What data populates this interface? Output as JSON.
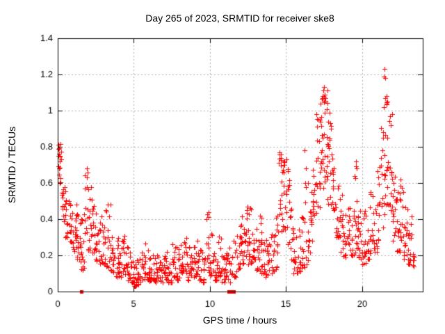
{
  "window": {
    "background": "#ffffff"
  },
  "chart_data": {
    "type": "scatter",
    "title": "Day 265 of 2023, SRMTID for receiver ske8",
    "xlabel": "GPS time / hours",
    "ylabel": "SRMTID / TECUs",
    "xlim": [
      0,
      24
    ],
    "ylim": [
      0,
      1.4
    ],
    "xticks": [
      0,
      5,
      10,
      15,
      20
    ],
    "xtick_labels": [
      "0",
      "5",
      "10",
      "15",
      "20"
    ],
    "yticks": [
      0,
      0.2,
      0.4,
      0.6,
      0.8,
      1.0,
      1.2,
      1.4
    ],
    "ytick_labels": [
      "0",
      "0.2",
      "0.4",
      "0.6",
      "0.8",
      "1",
      "1.2",
      "1.4"
    ],
    "grid": true,
    "legend_position": "none",
    "marker": "plus",
    "marker_color": "#ff0000",
    "grid_color": "#aaaaaa",
    "axis_color": "#000000",
    "seed": 20230265,
    "density_profile": {
      "note": "dense scatter approximated per 0.25h bin: [start_hour, y_min_TECU, y_max_TECU, n_points, spread_mode(0=skewed_low,1=uniform)]",
      "bin_width_hours": 0.25,
      "bins": [
        [
          0.0,
          0.55,
          0.82,
          14,
          1
        ],
        [
          0.25,
          0.38,
          0.72,
          15,
          0
        ],
        [
          0.5,
          0.3,
          0.6,
          14,
          0
        ],
        [
          0.75,
          0.27,
          0.52,
          14,
          0
        ],
        [
          1.0,
          0.22,
          0.5,
          16,
          0
        ],
        [
          1.25,
          0.18,
          0.45,
          14,
          0
        ],
        [
          1.5,
          0.12,
          0.42,
          14,
          0
        ],
        [
          1.75,
          0.28,
          0.68,
          13,
          1
        ],
        [
          2.0,
          0.22,
          0.58,
          14,
          0
        ],
        [
          2.25,
          0.2,
          0.5,
          13,
          0
        ],
        [
          2.5,
          0.17,
          0.45,
          12,
          0
        ],
        [
          2.75,
          0.15,
          0.42,
          12,
          0
        ],
        [
          3.0,
          0.14,
          0.46,
          12,
          0
        ],
        [
          3.25,
          0.12,
          0.48,
          12,
          0
        ],
        [
          3.5,
          0.1,
          0.35,
          12,
          0
        ],
        [
          3.75,
          0.08,
          0.3,
          12,
          0
        ],
        [
          4.0,
          0.08,
          0.28,
          12,
          0
        ],
        [
          4.25,
          0.09,
          0.32,
          12,
          0
        ],
        [
          4.5,
          0.06,
          0.25,
          12,
          0
        ],
        [
          4.75,
          0.05,
          0.22,
          14,
          0
        ],
        [
          5.0,
          0.03,
          0.18,
          14,
          0
        ],
        [
          5.25,
          0.04,
          0.2,
          12,
          0
        ],
        [
          5.5,
          0.05,
          0.22,
          12,
          0
        ],
        [
          5.75,
          0.06,
          0.27,
          12,
          0
        ],
        [
          6.0,
          0.05,
          0.25,
          12,
          0
        ],
        [
          6.25,
          0.05,
          0.22,
          12,
          0
        ],
        [
          6.5,
          0.06,
          0.2,
          12,
          0
        ],
        [
          6.75,
          0.05,
          0.18,
          12,
          0
        ],
        [
          7.0,
          0.06,
          0.22,
          14,
          0
        ],
        [
          7.25,
          0.05,
          0.2,
          12,
          0
        ],
        [
          7.5,
          0.08,
          0.28,
          12,
          0
        ],
        [
          7.75,
          0.06,
          0.25,
          12,
          0
        ],
        [
          8.0,
          0.08,
          0.33,
          14,
          0
        ],
        [
          8.25,
          0.1,
          0.33,
          12,
          0
        ],
        [
          8.5,
          0.06,
          0.25,
          12,
          0
        ],
        [
          8.75,
          0.08,
          0.28,
          12,
          0
        ],
        [
          9.0,
          0.08,
          0.3,
          12,
          0
        ],
        [
          9.25,
          0.06,
          0.25,
          12,
          0
        ],
        [
          9.5,
          0.05,
          0.22,
          12,
          0
        ],
        [
          9.75,
          0.1,
          0.44,
          12,
          0
        ],
        [
          10.0,
          0.08,
          0.33,
          12,
          0
        ],
        [
          10.25,
          0.06,
          0.25,
          12,
          0
        ],
        [
          10.5,
          0.08,
          0.33,
          12,
          0
        ],
        [
          10.75,
          0.05,
          0.22,
          12,
          0
        ],
        [
          11.0,
          0.06,
          0.22,
          12,
          0
        ],
        [
          11.25,
          0.05,
          0.25,
          10,
          0
        ],
        [
          11.5,
          0.08,
          0.3,
          10,
          0
        ],
        [
          11.75,
          0.12,
          0.35,
          12,
          0
        ],
        [
          12.0,
          0.15,
          0.42,
          14,
          0
        ],
        [
          12.25,
          0.17,
          0.46,
          14,
          0
        ],
        [
          12.5,
          0.15,
          0.47,
          14,
          0
        ],
        [
          12.75,
          0.14,
          0.4,
          12,
          0
        ],
        [
          13.0,
          0.12,
          0.38,
          12,
          0
        ],
        [
          13.25,
          0.1,
          0.42,
          12,
          0
        ],
        [
          13.5,
          0.08,
          0.3,
          12,
          0
        ],
        [
          13.75,
          0.09,
          0.28,
          12,
          0
        ],
        [
          14.0,
          0.1,
          0.32,
          12,
          0
        ],
        [
          14.25,
          0.12,
          0.42,
          12,
          0
        ],
        [
          14.5,
          0.25,
          0.77,
          14,
          1
        ],
        [
          14.75,
          0.3,
          0.75,
          14,
          1
        ],
        [
          15.0,
          0.25,
          0.7,
          13,
          1
        ],
        [
          15.25,
          0.15,
          0.5,
          12,
          0
        ],
        [
          15.5,
          0.1,
          0.35,
          12,
          0
        ],
        [
          15.75,
          0.1,
          0.35,
          12,
          0
        ],
        [
          16.0,
          0.12,
          0.45,
          12,
          0
        ],
        [
          16.25,
          0.15,
          0.78,
          12,
          0
        ],
        [
          16.5,
          0.2,
          0.6,
          12,
          0
        ],
        [
          16.75,
          0.3,
          0.8,
          14,
          1
        ],
        [
          17.0,
          0.45,
          1.02,
          16,
          1
        ],
        [
          17.25,
          0.55,
          1.1,
          18,
          1
        ],
        [
          17.5,
          0.55,
          1.13,
          18,
          1
        ],
        [
          17.75,
          0.45,
          1.0,
          16,
          1
        ],
        [
          18.0,
          0.38,
          0.78,
          14,
          1
        ],
        [
          18.25,
          0.3,
          0.65,
          13,
          0
        ],
        [
          18.5,
          0.22,
          0.58,
          12,
          0
        ],
        [
          18.75,
          0.18,
          0.5,
          12,
          0
        ],
        [
          19.0,
          0.18,
          0.48,
          12,
          0
        ],
        [
          19.25,
          0.2,
          0.55,
          12,
          0
        ],
        [
          19.5,
          0.2,
          0.72,
          14,
          1
        ],
        [
          19.75,
          0.18,
          0.65,
          14,
          0
        ],
        [
          20.0,
          0.15,
          0.45,
          14,
          0
        ],
        [
          20.25,
          0.18,
          0.48,
          12,
          0
        ],
        [
          20.5,
          0.2,
          0.55,
          12,
          0
        ],
        [
          20.75,
          0.22,
          0.62,
          12,
          0
        ],
        [
          21.0,
          0.28,
          0.72,
          12,
          0
        ],
        [
          21.25,
          0.35,
          0.95,
          14,
          1
        ],
        [
          21.5,
          0.45,
          1.1,
          16,
          1
        ],
        [
          21.75,
          0.4,
          1.05,
          15,
          1
        ],
        [
          22.0,
          0.28,
          0.7,
          14,
          0
        ],
        [
          22.25,
          0.22,
          0.55,
          14,
          0
        ],
        [
          22.5,
          0.22,
          0.62,
          14,
          0
        ],
        [
          22.75,
          0.18,
          0.5,
          13,
          0
        ],
        [
          23.0,
          0.15,
          0.42,
          14,
          0
        ],
        [
          23.25,
          0.14,
          0.35,
          8,
          0
        ]
      ]
    },
    "highlight_points": [
      [
        0.03,
        0.81
      ],
      [
        0.06,
        0.79
      ],
      [
        0.09,
        0.76
      ],
      [
        0.12,
        0.72
      ],
      [
        1.9,
        0.68
      ],
      [
        1.93,
        0.63
      ],
      [
        3.3,
        0.48
      ],
      [
        9.9,
        0.44
      ],
      [
        9.92,
        0.41
      ],
      [
        12.5,
        0.47
      ],
      [
        13.3,
        0.42
      ],
      [
        14.6,
        0.77
      ],
      [
        14.66,
        0.74
      ],
      [
        14.9,
        0.7
      ],
      [
        15.05,
        0.73
      ],
      [
        16.25,
        0.78
      ],
      [
        16.3,
        0.68
      ],
      [
        16.28,
        0.6
      ],
      [
        17.5,
        1.13
      ],
      [
        17.45,
        1.11
      ],
      [
        17.55,
        1.09
      ],
      [
        17.62,
        1.07
      ],
      [
        17.4,
        1.08
      ],
      [
        19.6,
        0.72
      ],
      [
        19.65,
        0.68
      ],
      [
        21.5,
        1.23
      ],
      [
        21.46,
        1.19
      ],
      [
        21.54,
        1.18
      ],
      [
        21.6,
        1.08
      ],
      [
        21.65,
        1.05
      ],
      [
        21.42,
        1.02
      ],
      [
        22.55,
        0.62
      ]
    ],
    "zero_marker_hours": [
      1.55,
      11.25,
      11.35,
      11.55
    ]
  }
}
